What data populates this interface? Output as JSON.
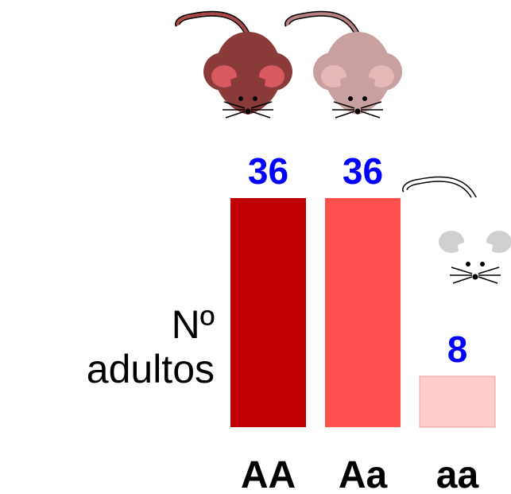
{
  "chart_data": {
    "type": "bar",
    "y_label": "Nº adultos",
    "categories": [
      "AA",
      "Aa",
      "aa"
    ],
    "values": [
      36,
      36,
      8
    ],
    "colors": [
      "#c00000",
      "#ff5050",
      "#ffcccc"
    ],
    "value_color": "#0000ff"
  }
}
